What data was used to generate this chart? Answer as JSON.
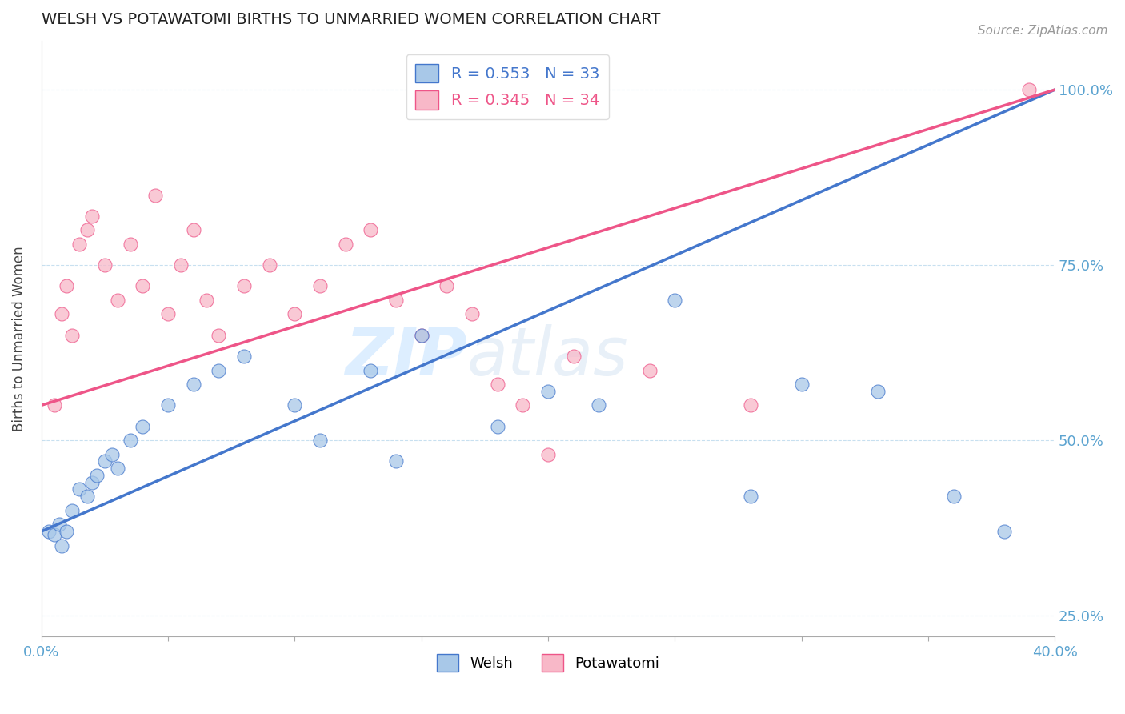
{
  "title": "WELSH VS POTAWATOMI BIRTHS TO UNMARRIED WOMEN CORRELATION CHART",
  "source_text": "Source: ZipAtlas.com",
  "ylabel": "Births to Unmarried Women",
  "xlim": [
    0.0,
    40.0
  ],
  "ylim": [
    22.0,
    107.0
  ],
  "x_ticks": [
    0.0,
    5.0,
    10.0,
    15.0,
    20.0,
    25.0,
    30.0,
    35.0,
    40.0
  ],
  "y_ticks": [
    25.0,
    50.0,
    75.0,
    100.0
  ],
  "welsh_R": 0.553,
  "welsh_N": 33,
  "potawatomi_R": 0.345,
  "potawatomi_N": 34,
  "welsh_color": "#a8c8e8",
  "potawatomi_color": "#f8b8c8",
  "welsh_line_color": "#4477cc",
  "potawatomi_line_color": "#ee5588",
  "background_color": "#ffffff",
  "watermark_color": "#ddeeff",
  "welsh_x": [
    0.3,
    0.5,
    0.7,
    0.8,
    1.0,
    1.2,
    1.5,
    1.8,
    2.0,
    2.2,
    2.5,
    2.8,
    3.0,
    3.5,
    4.0,
    5.0,
    6.0,
    7.0,
    8.0,
    10.0,
    11.0,
    13.0,
    14.0,
    15.0,
    18.0,
    20.0,
    22.0,
    25.0,
    28.0,
    30.0,
    33.0,
    36.0,
    38.0
  ],
  "welsh_y": [
    37.0,
    36.5,
    38.0,
    35.0,
    37.0,
    40.0,
    43.0,
    42.0,
    44.0,
    45.0,
    47.0,
    48.0,
    46.0,
    50.0,
    52.0,
    55.0,
    58.0,
    60.0,
    62.0,
    55.0,
    50.0,
    60.0,
    47.0,
    65.0,
    52.0,
    57.0,
    55.0,
    70.0,
    42.0,
    58.0,
    57.0,
    42.0,
    37.0
  ],
  "potawatomi_x": [
    0.5,
    0.8,
    1.0,
    1.2,
    1.5,
    1.8,
    2.0,
    2.5,
    3.0,
    3.5,
    4.0,
    4.5,
    5.0,
    5.5,
    6.0,
    6.5,
    7.0,
    8.0,
    9.0,
    10.0,
    11.0,
    12.0,
    13.0,
    14.0,
    15.0,
    16.0,
    17.0,
    18.0,
    19.0,
    20.0,
    21.0,
    24.0,
    28.0,
    39.0
  ],
  "potawatomi_y": [
    55.0,
    68.0,
    72.0,
    65.0,
    78.0,
    80.0,
    82.0,
    75.0,
    70.0,
    78.0,
    72.0,
    85.0,
    68.0,
    75.0,
    80.0,
    70.0,
    65.0,
    72.0,
    75.0,
    68.0,
    72.0,
    78.0,
    80.0,
    70.0,
    65.0,
    72.0,
    68.0,
    58.0,
    55.0,
    48.0,
    62.0,
    60.0,
    55.0,
    100.0
  ],
  "welsh_line_x0": 0.0,
  "welsh_line_y0": 37.0,
  "welsh_line_x1": 40.0,
  "welsh_line_y1": 100.0,
  "potawatomi_line_x0": 0.0,
  "potawatomi_line_y0": 55.0,
  "potawatomi_line_x1": 40.0,
  "potawatomi_line_y1": 100.0
}
